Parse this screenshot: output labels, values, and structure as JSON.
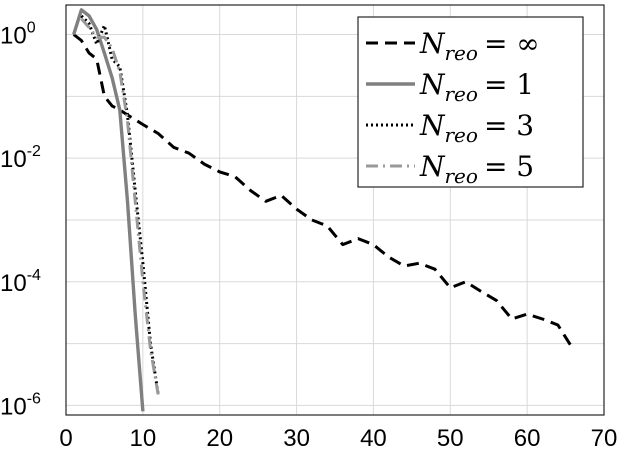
{
  "chart_data": {
    "type": "line",
    "title": "",
    "xlabel": "",
    "ylabel": "",
    "xlim": [
      0,
      70
    ],
    "ylim": [
      7e-07,
      3
    ],
    "yscale": "log",
    "grid": true,
    "legend_position": "top-right",
    "x_ticks": [
      "0",
      "10",
      "20",
      "30",
      "40",
      "50",
      "60",
      "70"
    ],
    "y_ticks": [
      {
        "base": "10",
        "exp": "0",
        "value": 1
      },
      {
        "base": "10",
        "exp": "-2",
        "value": 0.01
      },
      {
        "base": "10",
        "exp": "-4",
        "value": 0.0001
      },
      {
        "base": "10",
        "exp": "-6",
        "value": 1e-06
      }
    ],
    "series": [
      {
        "legend_sym": "N",
        "legend_sub": "reo",
        "legend_val": "= ∞",
        "style": "dashed",
        "color": "#000000",
        "x": [
          1,
          2,
          3,
          4,
          5,
          6,
          7,
          8,
          10,
          12,
          14,
          16,
          18,
          20,
          22,
          24,
          26,
          28,
          30,
          32,
          34,
          36,
          38,
          40,
          42,
          44,
          46,
          48,
          50,
          52,
          54,
          56,
          58,
          60,
          62,
          64,
          66
        ],
        "y": [
          1,
          0.8,
          0.5,
          0.4,
          0.1,
          0.07,
          0.06,
          0.05,
          0.035,
          0.025,
          0.015,
          0.012,
          0.008,
          0.006,
          0.005,
          0.003,
          0.002,
          0.0025,
          0.0015,
          0.001,
          0.0008,
          0.0004,
          0.0005,
          0.0004,
          0.00025,
          0.00018,
          0.0002,
          0.00016,
          8e-05,
          0.0001,
          7e-05,
          5e-05,
          2.5e-05,
          3e-05,
          2.5e-05,
          2e-05,
          8e-06
        ]
      },
      {
        "legend_sym": "N",
        "legend_sub": "reo",
        "legend_val": "= 1",
        "style": "solid",
        "color": "#808080",
        "x": [
          1,
          2,
          3,
          4,
          5,
          6,
          7,
          8,
          9,
          10
        ],
        "y": [
          1,
          2.5,
          2.0,
          1.2,
          0.5,
          0.2,
          0.06,
          0.002,
          3e-05,
          8e-07
        ]
      },
      {
        "legend_sym": "N",
        "legend_sub": "reo",
        "legend_val": "= 3",
        "style": "dotted",
        "color": "#000000",
        "x": [
          2,
          3,
          4,
          5,
          6,
          7,
          8,
          9,
          10,
          11,
          12
        ],
        "y": [
          2.0,
          1.5,
          0.7,
          1.4,
          0.4,
          0.3,
          0.05,
          0.003,
          0.0002,
          1e-05,
          1.5e-06
        ]
      },
      {
        "legend_sym": "N",
        "legend_sub": "reo",
        "legend_val": "= 5",
        "style": "dashdot",
        "color": "#999999",
        "x": [
          2,
          3,
          4,
          5,
          6,
          7,
          8,
          9,
          10,
          11,
          12
        ],
        "y": [
          1.8,
          1.3,
          0.9,
          0.9,
          0.6,
          0.25,
          0.04,
          0.002,
          0.0001,
          8e-06,
          1.5e-06
        ]
      }
    ]
  }
}
